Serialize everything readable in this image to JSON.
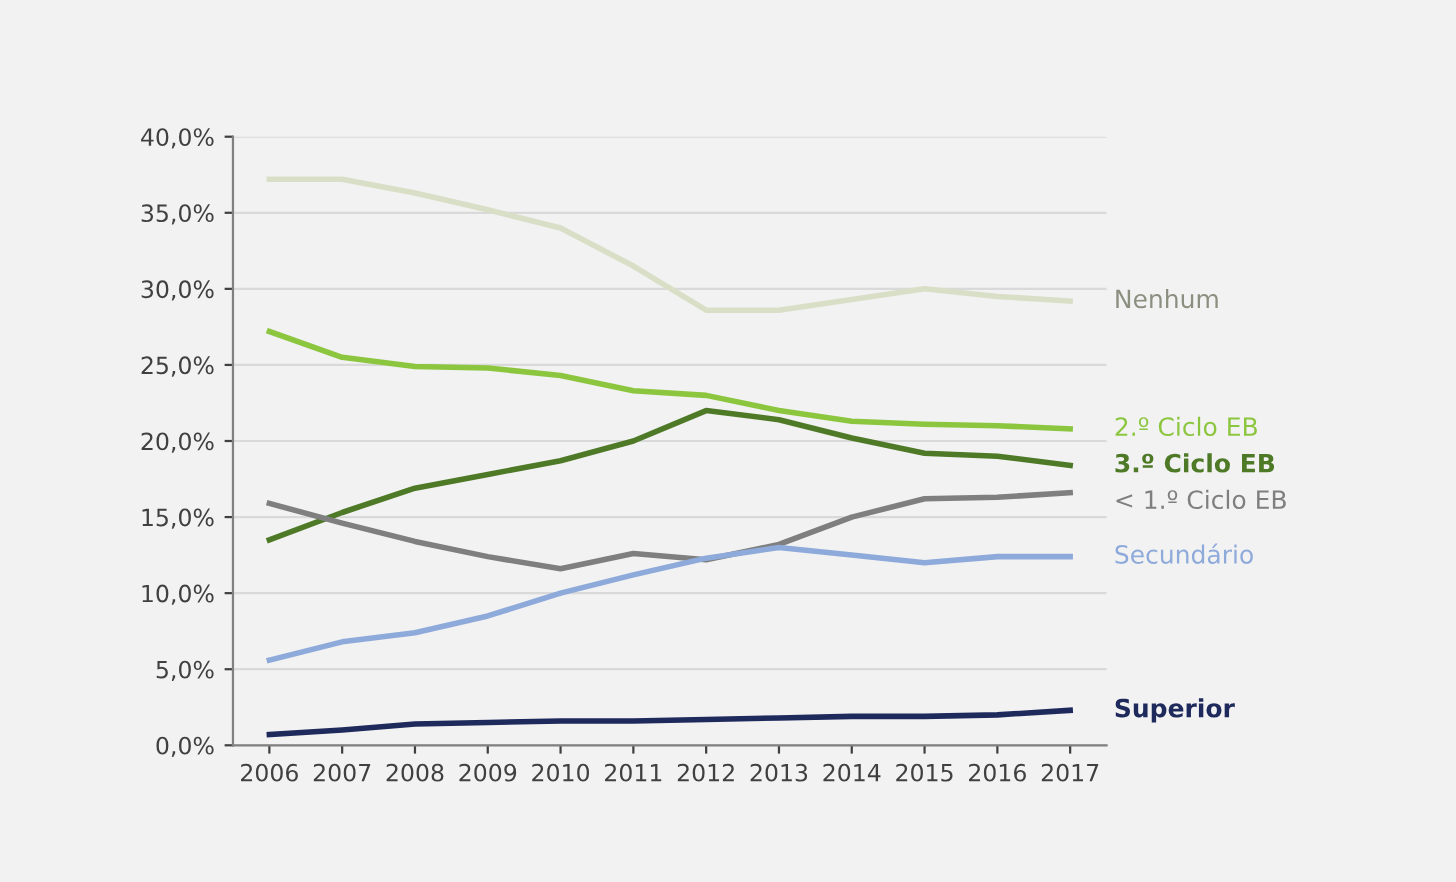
{
  "chart_data": {
    "type": "line",
    "x": [
      2006,
      2007,
      2008,
      2009,
      2010,
      2011,
      2012,
      2013,
      2014,
      2015,
      2016,
      2017
    ],
    "series": [
      {
        "name": "Nenhum",
        "color": "#d9dfc7",
        "values": [
          37.2,
          37.2,
          36.3,
          35.2,
          34.0,
          31.5,
          28.6,
          28.6,
          29.3,
          30.0,
          29.5,
          29.2
        ]
      },
      {
        "name": "2.º Ciclo EB",
        "color": "#8cc63f",
        "values": [
          27.2,
          25.5,
          24.9,
          24.8,
          24.3,
          23.3,
          23.0,
          22.0,
          21.3,
          21.1,
          21.0,
          20.8
        ]
      },
      {
        "name": "3.º Ciclo EB",
        "color": "#4e7a27",
        "values": [
          13.5,
          15.3,
          16.9,
          17.8,
          18.7,
          20.0,
          22.0,
          21.4,
          20.2,
          19.2,
          19.0,
          18.4
        ]
      },
      {
        "name": "< 1.º Ciclo EB",
        "color": "#7f7f7f",
        "values": [
          15.9,
          14.6,
          13.4,
          12.4,
          11.6,
          12.6,
          12.2,
          13.2,
          15.0,
          16.2,
          16.3,
          16.6
        ]
      },
      {
        "name": "Secundário",
        "color": "#8eaadb",
        "values": [
          5.6,
          6.8,
          7.4,
          8.5,
          10.0,
          11.2,
          12.3,
          13.0,
          12.5,
          12.0,
          12.4,
          12.4
        ]
      },
      {
        "name": "Superior",
        "color": "#1f2a5c",
        "values": [
          0.7,
          1.0,
          1.4,
          1.5,
          1.6,
          1.6,
          1.7,
          1.8,
          1.9,
          1.9,
          2.0,
          2.3
        ]
      }
    ],
    "xlim": [
      2005.5,
      2017.5
    ],
    "xticks": [
      2006,
      2007,
      2008,
      2009,
      2010,
      2011,
      2012,
      2013,
      2014,
      2015,
      2016,
      2017
    ],
    "ylim": [
      0,
      40
    ],
    "yticks": [
      {
        "value": 0,
        "label": "0,0%"
      },
      {
        "value": 5,
        "label": "5,0%"
      },
      {
        "value": 10,
        "label": "10,0%"
      },
      {
        "value": 15,
        "label": "15,0%"
      },
      {
        "value": 20,
        "label": "20,0%"
      },
      {
        "value": 25,
        "label": "25,0%"
      },
      {
        "value": 30,
        "label": "30,0%"
      },
      {
        "value": 35,
        "label": "35,0%"
      },
      {
        "value": 40,
        "label": "40,0%"
      }
    ],
    "grid": "y",
    "legend": false,
    "marker": "none",
    "line_style": "solid"
  }
}
